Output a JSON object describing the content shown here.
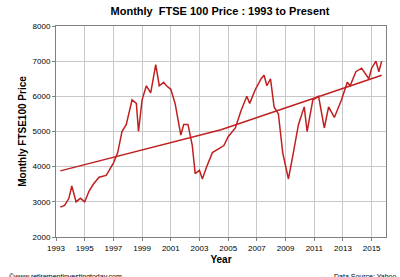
{
  "chart_data": {
    "type": "line",
    "title": "Monthly  FTSE 100 Price : 1993 to Present",
    "x_label": "Year",
    "y_label": "Monthly FTSE100 Price",
    "annotations": [
      "©www.retirementinvestingtoday.com",
      "Data Source: Yahoo"
    ],
    "color": "#c0201f",
    "series": [
      {
        "color": "#c0201f",
        "x": [
          1993.3,
          1993.6,
          1993.9,
          1994.1,
          1994.4,
          1994.7,
          1995.0,
          1995.3,
          1995.6,
          1996.0,
          1996.5,
          1997.0,
          1997.3,
          1997.6,
          1997.9,
          1998.3,
          1998.6,
          1998.75,
          1999.0,
          1999.3,
          1999.6,
          1999.95,
          2000.2,
          2000.5,
          2000.7,
          2001.0,
          2001.3,
          2001.7,
          2001.9,
          2002.2,
          2002.5,
          2002.7,
          2003.0,
          2003.2,
          2003.5,
          2003.9,
          2004.3,
          2004.7,
          2005.0,
          2005.5,
          2005.9,
          2006.3,
          2006.5,
          2006.9,
          2007.3,
          2007.5,
          2007.7,
          2007.95,
          2008.2,
          2008.5,
          2008.8,
          2009.1,
          2009.2,
          2009.5,
          2009.9,
          2010.3,
          2010.5,
          2010.9,
          2011.3,
          2011.7,
          2012.0,
          2012.4,
          2012.9,
          2013.3,
          2013.5,
          2013.9,
          2014.3,
          2014.8,
          2015.0,
          2015.3,
          2015.5,
          2015.7
        ],
        "values": [
          2850,
          2900,
          3100,
          3450,
          3000,
          3100,
          3000,
          3300,
          3500,
          3700,
          3750,
          4100,
          4400,
          5000,
          5200,
          5900,
          5800,
          5000,
          5900,
          6300,
          6100,
          6900,
          6300,
          6400,
          6300,
          6200,
          5800,
          4900,
          5200,
          5200,
          4600,
          3800,
          3900,
          3650,
          4000,
          4400,
          4500,
          4600,
          4850,
          5100,
          5600,
          6000,
          5800,
          6200,
          6500,
          6600,
          6300,
          6500,
          5700,
          5500,
          4400,
          3800,
          3650,
          4300,
          5200,
          5700,
          5000,
          5900,
          6000,
          5100,
          5700,
          5400,
          5900,
          6400,
          6300,
          6700,
          6800,
          6500,
          6800,
          7000,
          6700,
          7000
        ]
      },
      {
        "color": "#c0201f",
        "x": [
          1993.3,
          2004.5,
          2015.7
        ],
        "values": [
          3880,
          5050,
          6600
        ]
      }
    ],
    "xlim": [
      1993,
      2016
    ],
    "xticks": [
      1993,
      1995,
      1997,
      1999,
      2001,
      2003,
      2005,
      2007,
      2009,
      2011,
      2013,
      2015
    ],
    "ylim": [
      2000,
      8000
    ],
    "yticks": [
      2000,
      3000,
      4000,
      5000,
      6000,
      7000,
      8000
    ],
    "grid": true
  }
}
